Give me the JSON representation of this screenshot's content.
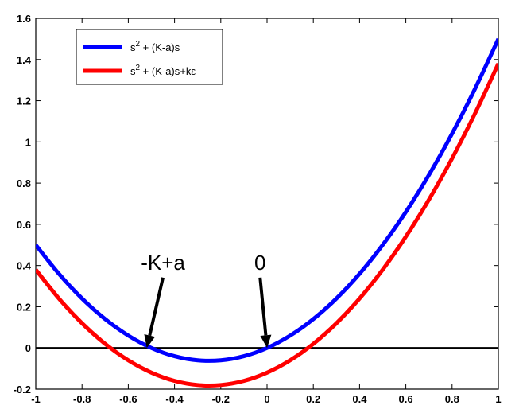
{
  "chart_data": {
    "type": "line",
    "title": "",
    "xlabel": "",
    "ylabel": "",
    "xlim": [
      -1,
      1
    ],
    "ylim": [
      -0.2,
      1.6
    ],
    "xticks": [
      -1,
      -0.8,
      -0.6,
      -0.4,
      -0.2,
      0,
      0.2,
      0.4,
      0.6,
      0.8,
      1
    ],
    "xtick_labels": [
      "-1",
      "-0.8",
      "-0.6",
      "-0.4",
      "-0.2",
      "0",
      "0.2",
      "0.4",
      "0.6",
      "0.8",
      "1"
    ],
    "yticks": [
      -0.2,
      0,
      0.2,
      0.4,
      0.6,
      0.8,
      1,
      1.2,
      1.4,
      1.6
    ],
    "ytick_labels": [
      "-0.2",
      "0",
      "0.2",
      "0.4",
      "0.6",
      "0.8",
      "1",
      "1.2",
      "1.4",
      "1.6"
    ],
    "grid": false,
    "legend_position": "top-left",
    "series": [
      {
        "legend_base": "s",
        "legend_sup": "2",
        "legend_rest": " + (K-a)s",
        "color": "#0000ff",
        "x": [
          -1,
          -0.9,
          -0.8,
          -0.7,
          -0.6,
          -0.5,
          -0.4,
          -0.3,
          -0.2,
          -0.1,
          0,
          0.1,
          0.2,
          0.3,
          0.4,
          0.5,
          0.6,
          0.7,
          0.8,
          0.9,
          1
        ],
        "y": [
          0.5,
          0.36,
          0.24,
          0.14,
          0.06,
          0.0,
          -0.04,
          -0.06,
          -0.06,
          -0.04,
          0.0,
          0.06,
          0.14,
          0.24,
          0.36,
          0.5,
          0.66,
          0.84,
          1.04,
          1.26,
          1.5
        ]
      },
      {
        "legend_base": "s",
        "legend_sup": "2",
        "legend_rest": " + (K-a)s+kε",
        "color": "#ff0000",
        "x": [
          -1,
          -0.9,
          -0.8,
          -0.7,
          -0.6,
          -0.5,
          -0.4,
          -0.3,
          -0.2,
          -0.1,
          0,
          0.1,
          0.2,
          0.3,
          0.4,
          0.5,
          0.6,
          0.7,
          0.8,
          0.9,
          1
        ],
        "y": [
          0.38,
          0.24,
          0.12,
          0.02,
          -0.06,
          -0.12,
          -0.16,
          -0.18,
          -0.18,
          -0.16,
          -0.12,
          -0.06,
          0.02,
          0.12,
          0.24,
          0.38,
          0.54,
          0.72,
          0.92,
          1.14,
          1.38
        ]
      }
    ],
    "zero_line": {
      "y": 0,
      "color": "#000000"
    },
    "annotations": [
      {
        "text": "-K+a",
        "arrow_to": [
          -0.52,
          0.0
        ],
        "text_at": [
          -0.45,
          0.38
        ]
      },
      {
        "text": "0",
        "arrow_to": [
          0.0,
          0.0
        ],
        "text_at": [
          -0.03,
          0.38
        ]
      }
    ]
  }
}
